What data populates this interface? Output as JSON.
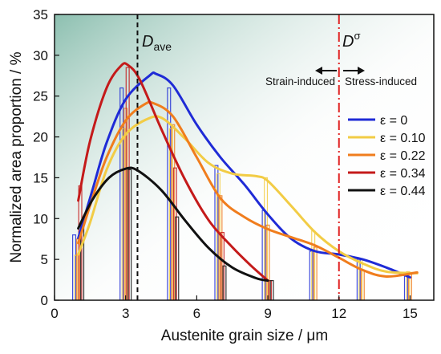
{
  "chart_data": {
    "type": "line",
    "title": "",
    "xlabel": "Austenite grain size / μm",
    "ylabel": "Normalized area proportion / %",
    "xlim": [
      0,
      16
    ],
    "ylim": [
      0,
      35
    ],
    "xticks": [
      0,
      3,
      6,
      9,
      12,
      15
    ],
    "yticks": [
      0,
      5,
      10,
      15,
      20,
      25,
      30,
      35
    ],
    "legend_position": "right-middle",
    "background": {
      "left_color": "#2e8b6f",
      "right_color": "#5da3a8"
    },
    "series": [
      {
        "name": "ε = 0",
        "color": "#1f2bd6",
        "curve": [
          [
            1.0,
            7.6
          ],
          [
            1.6,
            13.5
          ],
          [
            2.2,
            19.3
          ],
          [
            3.0,
            24.6
          ],
          [
            4.0,
            27.5
          ],
          [
            4.3,
            27.7
          ],
          [
            5.0,
            26.3
          ],
          [
            6.0,
            21.5
          ],
          [
            7.0,
            17.5
          ],
          [
            8.0,
            14.2
          ],
          [
            9.0,
            10.5
          ],
          [
            10.0,
            7.5
          ],
          [
            11.0,
            6.0
          ],
          [
            12.0,
            5.6
          ],
          [
            13.0,
            5.0
          ],
          [
            14.0,
            4.0
          ],
          [
            15.0,
            2.8
          ]
        ],
        "bars": [
          [
            1.0,
            8.0
          ],
          [
            3.0,
            26.0
          ],
          [
            5.0,
            26.0
          ],
          [
            7.0,
            16.5
          ],
          [
            9.0,
            11.0
          ],
          [
            11.0,
            6.0
          ],
          [
            13.0,
            5.0
          ],
          [
            15.0,
            3.0
          ]
        ]
      },
      {
        "name": "ε = 0.10",
        "color": "#f2cc45",
        "curve": [
          [
            1.0,
            5.6
          ],
          [
            1.5,
            9.5
          ],
          [
            2.2,
            16.0
          ],
          [
            3.0,
            20.3
          ],
          [
            4.0,
            22.3
          ],
          [
            4.6,
            22.2
          ],
          [
            5.5,
            19.8
          ],
          [
            6.5,
            16.8
          ],
          [
            7.5,
            15.5
          ],
          [
            8.5,
            15.2
          ],
          [
            9.0,
            14.6
          ],
          [
            10.0,
            11.5
          ],
          [
            11.0,
            8.3
          ],
          [
            12.0,
            6.0
          ],
          [
            13.0,
            4.5
          ],
          [
            14.0,
            3.5
          ],
          [
            15.3,
            3.3
          ]
        ],
        "bars": [
          [
            1.0,
            5.5
          ],
          [
            3.0,
            21.0
          ],
          [
            5.0,
            21.0
          ],
          [
            7.0,
            15.5
          ],
          [
            9.0,
            15.0
          ],
          [
            11.0,
            8.5
          ],
          [
            13.0,
            5.0
          ],
          [
            15.0,
            3.5
          ]
        ]
      },
      {
        "name": "ε = 0.22",
        "color": "#f07d1d",
        "curve": [
          [
            1.0,
            7.0
          ],
          [
            1.6,
            12.5
          ],
          [
            2.2,
            17.5
          ],
          [
            3.0,
            22.0
          ],
          [
            3.8,
            24.0
          ],
          [
            4.2,
            24.1
          ],
          [
            5.0,
            22.5
          ],
          [
            6.0,
            17.5
          ],
          [
            7.0,
            12.5
          ],
          [
            8.0,
            10.2
          ],
          [
            9.0,
            8.7
          ],
          [
            10.0,
            7.7
          ],
          [
            11.0,
            6.7
          ],
          [
            12.0,
            5.2
          ],
          [
            13.0,
            3.7
          ],
          [
            14.0,
            2.9
          ],
          [
            15.3,
            3.4
          ]
        ],
        "bars": [
          [
            1.0,
            7.5
          ],
          [
            3.0,
            23.5
          ],
          [
            5.0,
            21.5
          ],
          [
            7.0,
            12.8
          ],
          [
            9.0,
            9.2
          ],
          [
            11.0,
            6.5
          ],
          [
            13.0,
            3.7
          ],
          [
            15.0,
            3.2
          ]
        ]
      },
      {
        "name": "ε = 0.34",
        "color": "#c41a1a",
        "curve": [
          [
            1.0,
            12.2
          ],
          [
            1.5,
            19.5
          ],
          [
            2.2,
            26.0
          ],
          [
            2.8,
            28.7
          ],
          [
            3.1,
            28.8
          ],
          [
            3.6,
            27.0
          ],
          [
            4.5,
            21.0
          ],
          [
            5.5,
            14.8
          ],
          [
            6.5,
            9.8
          ],
          [
            7.5,
            6.5
          ],
          [
            8.3,
            4.2
          ],
          [
            9.0,
            2.4
          ]
        ],
        "bars": [
          [
            1.0,
            14.0
          ],
          [
            3.0,
            28.5
          ],
          [
            5.0,
            16.2
          ],
          [
            7.0,
            8.3
          ],
          [
            9.0,
            2.4
          ]
        ]
      },
      {
        "name": "ε = 0.44",
        "color": "#111111",
        "curve": [
          [
            1.0,
            8.8
          ],
          [
            1.6,
            12.3
          ],
          [
            2.3,
            15.0
          ],
          [
            3.0,
            16.1
          ],
          [
            3.5,
            15.9
          ],
          [
            4.5,
            13.5
          ],
          [
            5.5,
            9.8
          ],
          [
            6.5,
            6.4
          ],
          [
            7.5,
            4.0
          ],
          [
            8.5,
            2.7
          ],
          [
            9.0,
            2.4
          ]
        ],
        "bars": [
          [
            1.0,
            9.0
          ],
          [
            3.0,
            16.0
          ],
          [
            5.0,
            10.2
          ],
          [
            7.0,
            4.2
          ],
          [
            9.0,
            2.4
          ]
        ]
      }
    ],
    "reference_lines": [
      {
        "name": "D_ave",
        "x": 3.5,
        "style": "dashed",
        "color": "#111111",
        "label_main": "D",
        "label_sub": "ave"
      },
      {
        "name": "D_sigma",
        "x": 12.0,
        "style": "dash-dot",
        "color": "#e02020",
        "label_main": "D",
        "label_sup": "σ"
      }
    ],
    "annotations": [
      {
        "text": "Strain-induced",
        "arrow": "left"
      },
      {
        "text": "Stress-induced",
        "arrow": "right"
      }
    ]
  }
}
